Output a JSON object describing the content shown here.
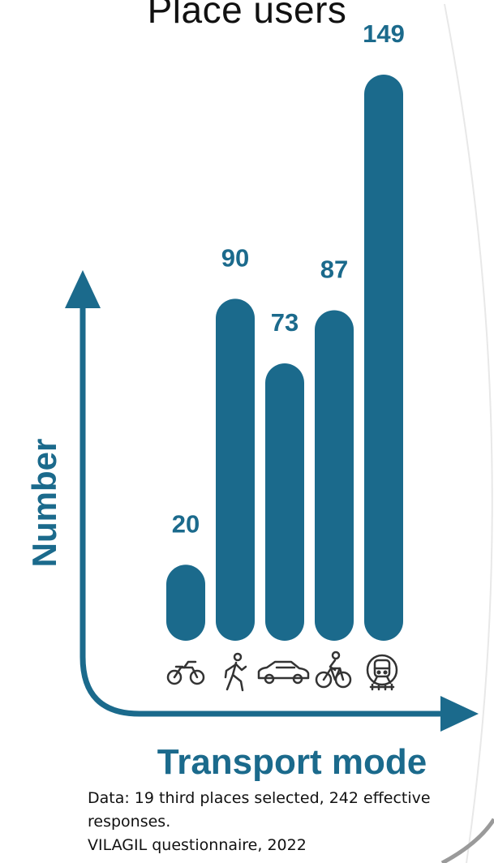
{
  "chart_data": {
    "type": "bar",
    "title": "Place users",
    "xlabel": "Transport mode",
    "ylabel": "Number",
    "categories": [
      {
        "icon": "motorcycle-icon"
      },
      {
        "icon": "walking-person-icon"
      },
      {
        "icon": "car-icon"
      },
      {
        "icon": "bicycle-icon"
      },
      {
        "icon": "train-icon"
      }
    ],
    "values": [
      20,
      90,
      73,
      87,
      149
    ],
    "data_labels": [
      "20",
      "90",
      "73",
      "87",
      "149"
    ],
    "ylim": [
      0,
      160
    ],
    "grid": false,
    "colors": {
      "bar": "#1b6a8c",
      "axis": "#1b6a8c",
      "icon": "#333333"
    }
  },
  "source": {
    "line1": "Data: 19 third places selected, 242 effective responses.",
    "line2": "VILAGIL questionnaire, 2022"
  }
}
